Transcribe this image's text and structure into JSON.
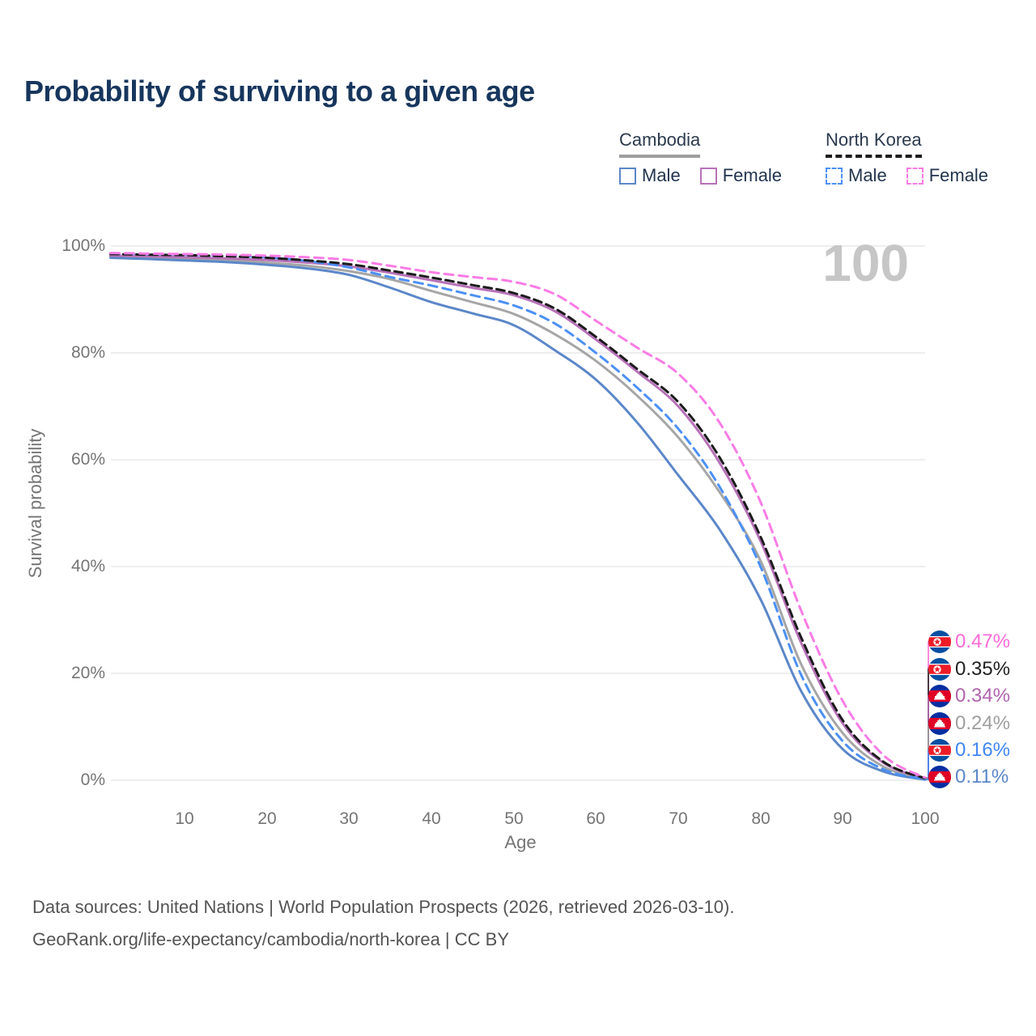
{
  "title": "Probability of surviving to a given age",
  "legend": {
    "groups": [
      {
        "name": "Cambodia",
        "line_style": "solid",
        "underline_color": "#9e9e9e",
        "items": [
          {
            "label": "Male",
            "color": "#5b87c9",
            "dash": false
          },
          {
            "label": "Female",
            "color": "#b772b8",
            "dash": false
          }
        ]
      },
      {
        "name": "North Korea",
        "line_style": "dashed",
        "underline_color": "#1c1c1c",
        "items": [
          {
            "label": "Male",
            "color": "#4b90f5",
            "dash": true
          },
          {
            "label": "Female",
            "color": "#f97ce5",
            "dash": true
          }
        ]
      }
    ]
  },
  "axes": {
    "y": {
      "title": "Survival probability",
      "ticks": [
        "100%",
        "80%",
        "60%",
        "40%",
        "20%",
        "0%"
      ]
    },
    "x": {
      "title": "Age",
      "ticks": [
        "10",
        "20",
        "30",
        "40",
        "50",
        "60",
        "70",
        "80",
        "90",
        "100"
      ]
    }
  },
  "age_cursor": "100",
  "chart_data": {
    "type": "line",
    "title": "Probability of surviving to a given age",
    "xlabel": "Age",
    "ylabel": "Survival probability",
    "x_range": [
      1,
      100
    ],
    "y_range_percent": [
      0,
      100
    ],
    "grid": "horizontal",
    "legend_position": "top-right",
    "ages": [
      1,
      5,
      10,
      15,
      20,
      25,
      30,
      35,
      40,
      45,
      50,
      55,
      60,
      65,
      70,
      75,
      80,
      85,
      90,
      95,
      100
    ],
    "series": [
      {
        "name": "Cambodia Total",
        "country": "Cambodia",
        "sex": "Total",
        "color": "#a6a6a6",
        "dash": null,
        "values": [
          98.0,
          97.9,
          97.7,
          97.4,
          96.9,
          96.3,
          95.3,
          93.8,
          91.6,
          89.5,
          87.3,
          83.5,
          78.5,
          72.0,
          64.2,
          54.0,
          41.1,
          21.5,
          8.8,
          2.5,
          0.24
        ]
      },
      {
        "name": "Cambodia Male",
        "country": "Cambodia",
        "sex": "Male",
        "color": "#5b87c9",
        "dash": null,
        "values": [
          97.8,
          97.6,
          97.3,
          97.0,
          96.5,
          95.8,
          94.6,
          92.2,
          89.5,
          87.4,
          85.2,
          80.5,
          75.0,
          67.0,
          57.1,
          47.0,
          33.9,
          16.5,
          5.8,
          1.6,
          0.11
        ]
      },
      {
        "name": "Cambodia Female",
        "country": "Cambodia",
        "sex": "Female",
        "color": "#b772b8",
        "dash": null,
        "values": [
          98.2,
          98.1,
          97.9,
          97.7,
          97.4,
          96.9,
          96.2,
          95.0,
          93.6,
          92.2,
          90.8,
          87.8,
          82.5,
          76.5,
          70.0,
          59.5,
          44.8,
          25.5,
          10.6,
          3.2,
          0.34
        ]
      },
      {
        "name": "North Korea Male",
        "country": "North Korea",
        "sex": "Male",
        "color": "#4b90f5",
        "dash": "11 7",
        "values": [
          98.6,
          98.5,
          98.4,
          98.2,
          97.9,
          97.2,
          96.0,
          94.2,
          92.6,
          90.8,
          88.9,
          85.5,
          80.0,
          73.5,
          65.8,
          55.0,
          40.0,
          19.5,
          7.3,
          2.0,
          0.16
        ]
      },
      {
        "name": "North Korea Total",
        "country": "North Korea",
        "sex": "Total",
        "color": "#1c1c1c",
        "dash": "10 6",
        "values": [
          98.5,
          98.4,
          98.3,
          98.1,
          97.8,
          97.3,
          96.6,
          95.4,
          94.1,
          92.7,
          91.2,
          88.3,
          83.0,
          77.0,
          70.8,
          60.5,
          45.6,
          26.5,
          11.2,
          3.4,
          0.35
        ]
      },
      {
        "name": "North Korea Female",
        "country": "North Korea",
        "sex": "Female",
        "color": "#f97ce5",
        "dash": "11 7",
        "values": [
          98.7,
          98.6,
          98.5,
          98.4,
          98.2,
          97.9,
          97.4,
          96.3,
          95.1,
          94.2,
          93.3,
          91.0,
          86.0,
          81.0,
          76.1,
          67.0,
          52.1,
          31.5,
          14.8,
          4.6,
          0.47
        ]
      }
    ]
  },
  "end_labels": {
    "items": [
      {
        "value": "0.47%",
        "series": "North Korea Female",
        "flag": "north-korea",
        "color": "#fb6ad9"
      },
      {
        "value": "0.35%",
        "series": "North Korea Total",
        "flag": "north-korea",
        "color": "#1f1f1f"
      },
      {
        "value": "0.34%",
        "series": "Cambodia Female",
        "flag": "cambodia",
        "color": "#b165ae"
      },
      {
        "value": "0.24%",
        "series": "Cambodia Total",
        "flag": "cambodia",
        "color": "#9f9f9f"
      },
      {
        "value": "0.16%",
        "series": "North Korea Male",
        "flag": "north-korea",
        "color": "#3f87f5"
      },
      {
        "value": "0.11%",
        "series": "Cambodia Male",
        "flag": "cambodia",
        "color": "#5b87c9"
      }
    ]
  },
  "footer": {
    "line1": "Data sources: United Nations | World Population Prospects (2026, retrieved 2026-03-10).",
    "line2": "GeoRank.org/life-expectancy/cambodia/north-korea | CC BY"
  }
}
